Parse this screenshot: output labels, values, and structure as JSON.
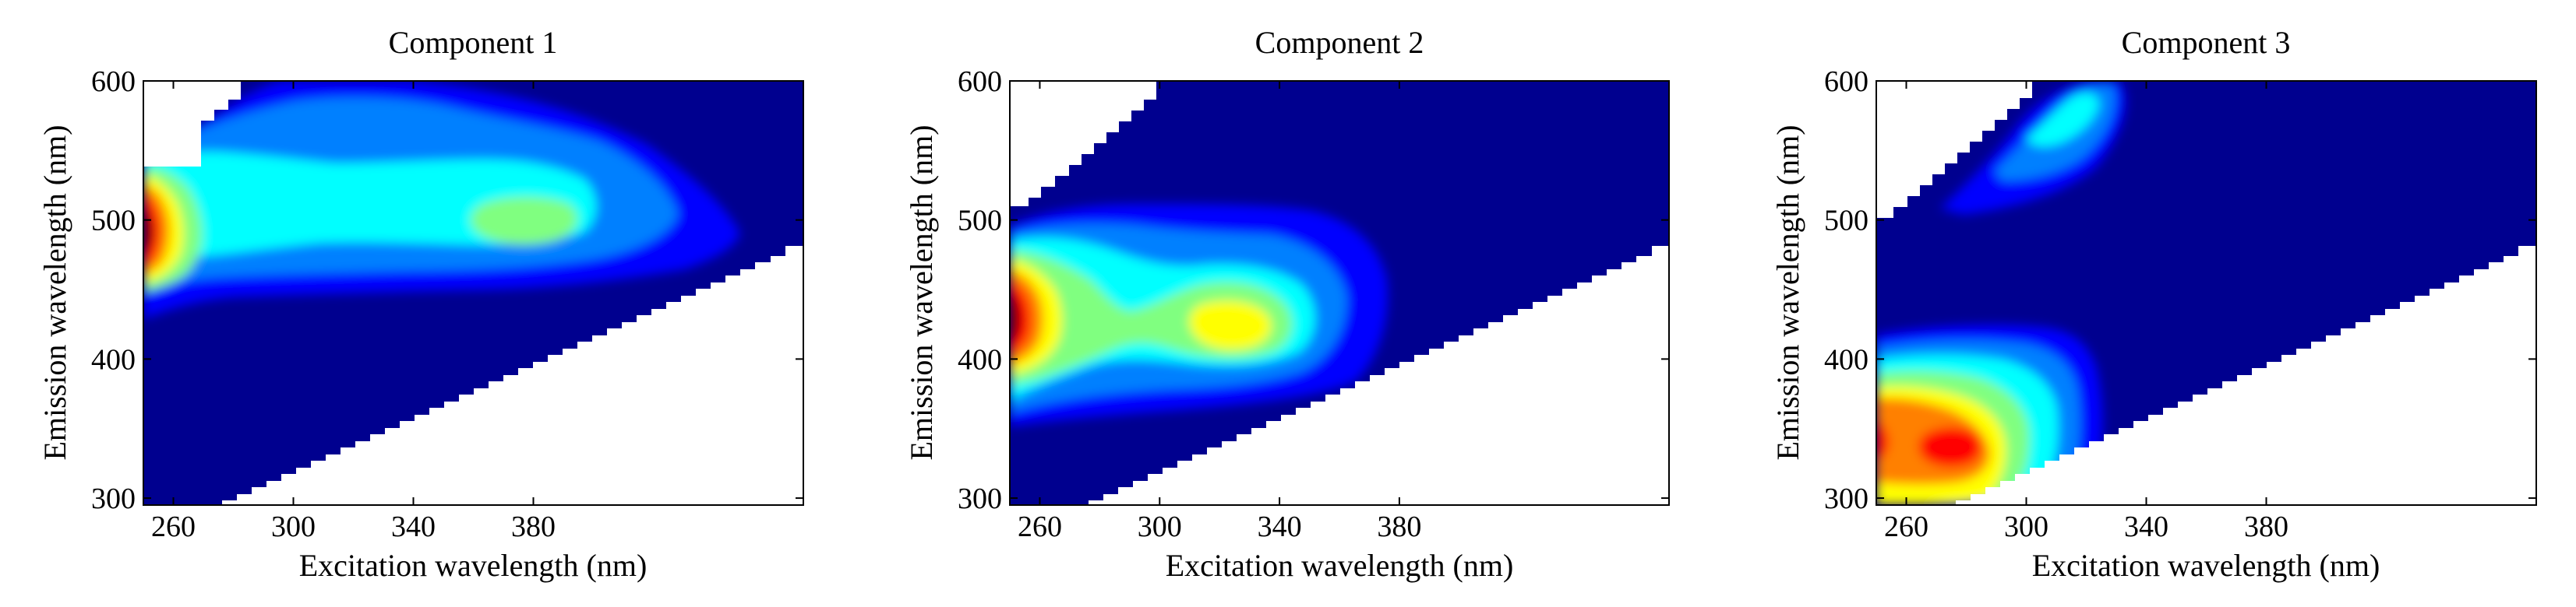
{
  "chart_data": [
    {
      "type": "heatmap",
      "title": "Component 1",
      "xlabel": "Excitation wavelength (nm)",
      "ylabel": "Emission wavelength (nm)",
      "xlim": [
        250,
        470
      ],
      "ylim": [
        295,
        600
      ],
      "xticks": [
        260,
        300,
        340,
        380
      ],
      "yticks": [
        300,
        400,
        500,
        600
      ],
      "colormap": "jet",
      "peaks": [
        {
          "ex": 252,
          "em": 480,
          "intensity": 1.0
        },
        {
          "ex": 362,
          "em": 483,
          "intensity": 0.47
        }
      ],
      "grid": false
    },
    {
      "type": "heatmap",
      "title": "Component 2",
      "xlabel": "Excitation wavelength (nm)",
      "ylabel": "Emission wavelength (nm)",
      "xlim": [
        250,
        470
      ],
      "ylim": [
        295,
        600
      ],
      "xticks": [
        260,
        300,
        340,
        380
      ],
      "yticks": [
        300,
        400,
        500,
        600
      ],
      "colormap": "jet",
      "peaks": [
        {
          "ex": 252,
          "em": 420,
          "intensity": 1.0
        },
        {
          "ex": 312,
          "em": 420,
          "intensity": 0.62
        }
      ],
      "grid": false
    },
    {
      "type": "heatmap",
      "title": "Component 3",
      "xlabel": "Excitation wavelength (nm)",
      "ylabel": "Emission wavelength (nm)",
      "xlim": [
        250,
        470
      ],
      "ylim": [
        295,
        600
      ],
      "xticks": [
        260,
        300,
        340,
        380
      ],
      "yticks": [
        300,
        400,
        500,
        600
      ],
      "colormap": "jet",
      "peaks": [
        {
          "ex": 252,
          "em": 335,
          "intensity": 0.9
        },
        {
          "ex": 282,
          "em": 333,
          "intensity": 0.85
        },
        {
          "ex": 265,
          "em": 300,
          "intensity": 0.7
        }
      ],
      "grid": false
    }
  ]
}
